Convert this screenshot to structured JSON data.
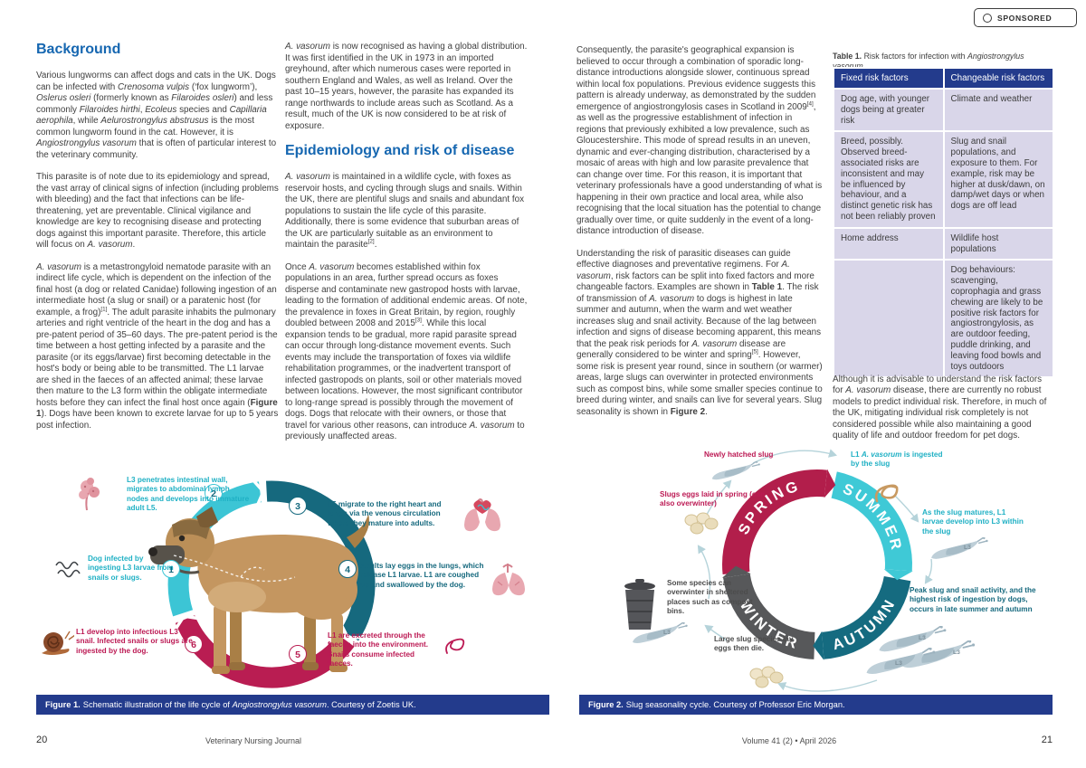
{
  "meta": {
    "sponsored": "SPONSORED"
  },
  "colors": {
    "heading_blue": "#1667b1",
    "navy": "#233b8c",
    "cyan": "#3cc5d5",
    "teal": "#16697e",
    "crimson": "#b91d52",
    "winter_grey": "#58595b",
    "table_lavender": "#d9d6e9"
  },
  "footer": {
    "left_page_number": "20",
    "journal": "Veterinary Nursing Journal",
    "volume": "Volume 41 (2)  •  April 2026",
    "right_page_number": "21"
  },
  "left_page": {
    "background": {
      "heading": "Background",
      "paragraphs": [
        "Various lungworms can affect dogs and cats in the UK. Dogs can be infected with <i>Crenosoma vulpis</i> (‘fox lungworm’), <i>Oslerus osleri</i> (formerly known as <i>Filaroides osleri</i>) and less commonly <i>Filaroides hirthi</i>, <i>Ecoleus</i> species and <i>Capillaria aerophila</i>, while <i>Aelurostrongylus abstrusus</i> is the most common lungworm found in the cat. However, it is <i>Angiostrongylus vasorum</i> that is often of particular interest to the veterinary community.",
        "This parasite is of note due to its epidemiology and spread, the vast array of clinical signs of infection (including problems with bleeding) and the fact that infections can be life-threatening, yet are preventable. Clinical vigilance and knowledge are key to recognising disease and protecting dogs against this important parasite. Therefore, this article will focus on <i>A. vasorum</i>.",
        "<i>A. vasorum</i> is a metastrongyloid nematode parasite with an indirect life cycle, which is dependent on the infection of the final host (a dog or related Canidae) following ingestion of an intermediate host (a slug or snail) or a paratenic host (for example, a frog)<sup>[1]</sup>. The adult parasite inhabits the pulmonary arteries and right ventricle of the heart in the dog and has a pre-patent period of 35–60 days. The pre-patent period is the time between a host getting infected by a parasite and the parasite (or its eggs/larvae) first becoming detectable in the host's body or being able to be transmitted. The L1 larvae are shed in the faeces of an affected animal; these larvae then mature to the L3 form within the obligate intermediate hosts before they can infect the final host once again (<b>Figure 1</b>). Dogs have been known to excrete larvae for up to 5 years post infection."
      ]
    },
    "col2": {
      "para1": "<i>A. vasorum</i> is now recognised as having a global distribution. It was first identified in the UK in 1973 in an imported greyhound, after which numerous cases were reported in southern England and Wales, as well as Ireland. Over the past 10–15 years, however, the parasite has expanded its range northwards to include areas such as Scotland. As a result, much of the UK is now considered to be at risk of exposure.",
      "heading": "Epidemiology and risk of disease",
      "paragraphs": [
        "<i>A. vasorum</i> is maintained in a wildlife cycle, with foxes as reservoir hosts, and cycling through slugs and snails. Within the UK, there are plentiful slugs and snails and abundant fox populations to sustain the life cycle of this parasite. Additionally, there is some evidence that suburban areas of the UK are particularly suitable as an environment to maintain the parasite<sup>[2]</sup>.",
        "Once <i>A. vasorum</i> becomes established within fox populations in an area, further spread occurs as foxes disperse and contaminate new gastropod hosts with larvae, leading to the formation of additional endemic areas. Of note, the prevalence in foxes in Great Britain, by region, roughly doubled between 2008 and 2015<sup>[3]</sup>. While this local expansion tends to be gradual, more rapid parasite spread can occur through long-distance movement events. Such events may include the transportation of foxes via wildlife rehabilitation programmes, or the inadvertent transport of infected gastropods on plants, soil or other materials moved between locations. However, the most significant contributor to long-range spread is possibly through the movement of dogs. Dogs that relocate with their owners, or those that travel for various other reasons, can introduce <i>A. vasorum</i> to previously unaffected areas."
      ]
    },
    "figure1": {
      "caption_label": "Figure 1.",
      "caption_text": "Schematic illustration of the life cycle of <i>Angiostrongylus vasorum</i>. Courtesy of Zoetis UK.",
      "steps": [
        {
          "num": "1",
          "text": "Dog infected by ingesting L3 larvae from snails or slugs."
        },
        {
          "num": "2",
          "text": "L3 penetrates intestinal wall, migrates to abdominal lymph nodes and develops into immature adult L5."
        },
        {
          "num": "3",
          "text": "L5 migrate to the right heart and lungs via the venous circulation where they mature into adults."
        },
        {
          "num": "4",
          "text": "Adults lay eggs in the lungs, which release L1 larvae. L1 are coughed up and swallowed by the dog."
        },
        {
          "num": "5",
          "text": "L1 are excreted through the faeces into the environment. Snails consume infected faeces."
        },
        {
          "num": "6",
          "text": "L1 develop into infectious L3 in the snail. Infected snails or slugs are ingested by the dog."
        }
      ]
    }
  },
  "right_page": {
    "col3_paragraphs": [
      "Consequently, the parasite's geographical expansion is believed to occur through a combination of sporadic long-distance introductions alongside slower, continuous spread within local fox populations. Previous evidence suggests this pattern is already underway, as demonstrated by the sudden emergence of angiostrongylosis cases in Scotland in 2009<sup>[4]</sup>, as well as the progressive establishment of infection in regions that previously exhibited a low prevalence, such as Gloucestershire. This mode of spread results in an uneven, dynamic and ever-changing distribution, characterised by a mosaic of areas with high and low parasite prevalence that can change over time. For this reason, it is important that veterinary professionals have a good understanding of what is happening in their own practice and local area, while also recognising that the local situation has the potential to change gradually over time, or quite suddenly in the event of a long-distance introduction of disease.",
      "Understanding the risk of parasitic diseases can guide effective diagnoses and preventative regimens. For <i>A. vasorum</i>, risk factors can be split into fixed factors and more changeable factors. Examples are shown in <b>Table 1</b>. The risk of transmission of <i>A. vasorum</i> to dogs is highest in late summer and autumn, when the warm and wet weather increases slug and snail activity. Because of the lag between infection and signs of disease becoming apparent, this means that the peak risk periods for <i>A. vasorum</i> disease are generally considered to be winter and spring<sup>[5]</sup>. However, some risk is present year round, since in southern (or warmer) areas, large slugs can overwinter in protected environments such as compost bins, while some smaller species continue to breed during winter, and snails can live for several years. Slug seasonality is shown in <b>Figure 2</b>."
    ],
    "table1": {
      "caption_label": "Table 1.",
      "caption_text": "Risk factors for infection with <i>Angiostrongylus vasorum</i>.",
      "headers": [
        "Fixed risk factors",
        "Changeable risk factors"
      ],
      "rows": [
        [
          "Dog age, with younger dogs being at greater risk",
          "Climate and weather"
        ],
        [
          "Breed, possibly. Observed breed-associated risks are inconsistent and may be influenced by behaviour, and a distinct genetic risk has not been reliably proven",
          "Slug and snail populations, and exposure to them. For example, risk may be higher at dusk/dawn, on damp/wet days or when dogs are off lead"
        ],
        [
          "Home address",
          "Wildlife host populations"
        ],
        [
          "",
          "Dog behaviours: scavenging, coprophagia and grass chewing are likely to be positive risk factors for angiostrongylosis, as are outdoor feeding, puddle drinking, and leaving food bowls and toys outdoors"
        ]
      ]
    },
    "below_table": "Although it is advisable to understand the risk factors for <i>A. vasorum</i> disease, there are currently no robust models to predict individual risk. Therefore, in much of the UK, mitigating individual risk completely is not considered possible while also maintaining a good quality of life and outdoor freedom for pet dogs.",
    "figure2": {
      "caption_label": "Figure 2.",
      "caption_text": "Slug seasonality cycle. Courtesy of Professor Eric Morgan.",
      "seasons": {
        "spring": "SPRING",
        "summer": "SUMMER",
        "autumn": "AUTUMN",
        "winter": "WINTER"
      },
      "l3": "L3",
      "labels": {
        "newly_hatched": "Newly hatched slug",
        "l1_ingested": "L1 <i>A. vasorum</i> is ingested by the slug",
        "slug_matures": "As the slug matures, L1 larvae develop into L3 within the slug",
        "peak_activity": "Peak slug and snail activity, and the highest risk of ingestion by dogs, occurs in late summer and autumn",
        "eggs_spring": "Slugs eggs laid in spring (can also overwinter)",
        "overwinter": "Some species can overwinter in sheltered places such as compost bins.",
        "large_slugs": "Large slug species lay eggs then die."
      }
    }
  }
}
